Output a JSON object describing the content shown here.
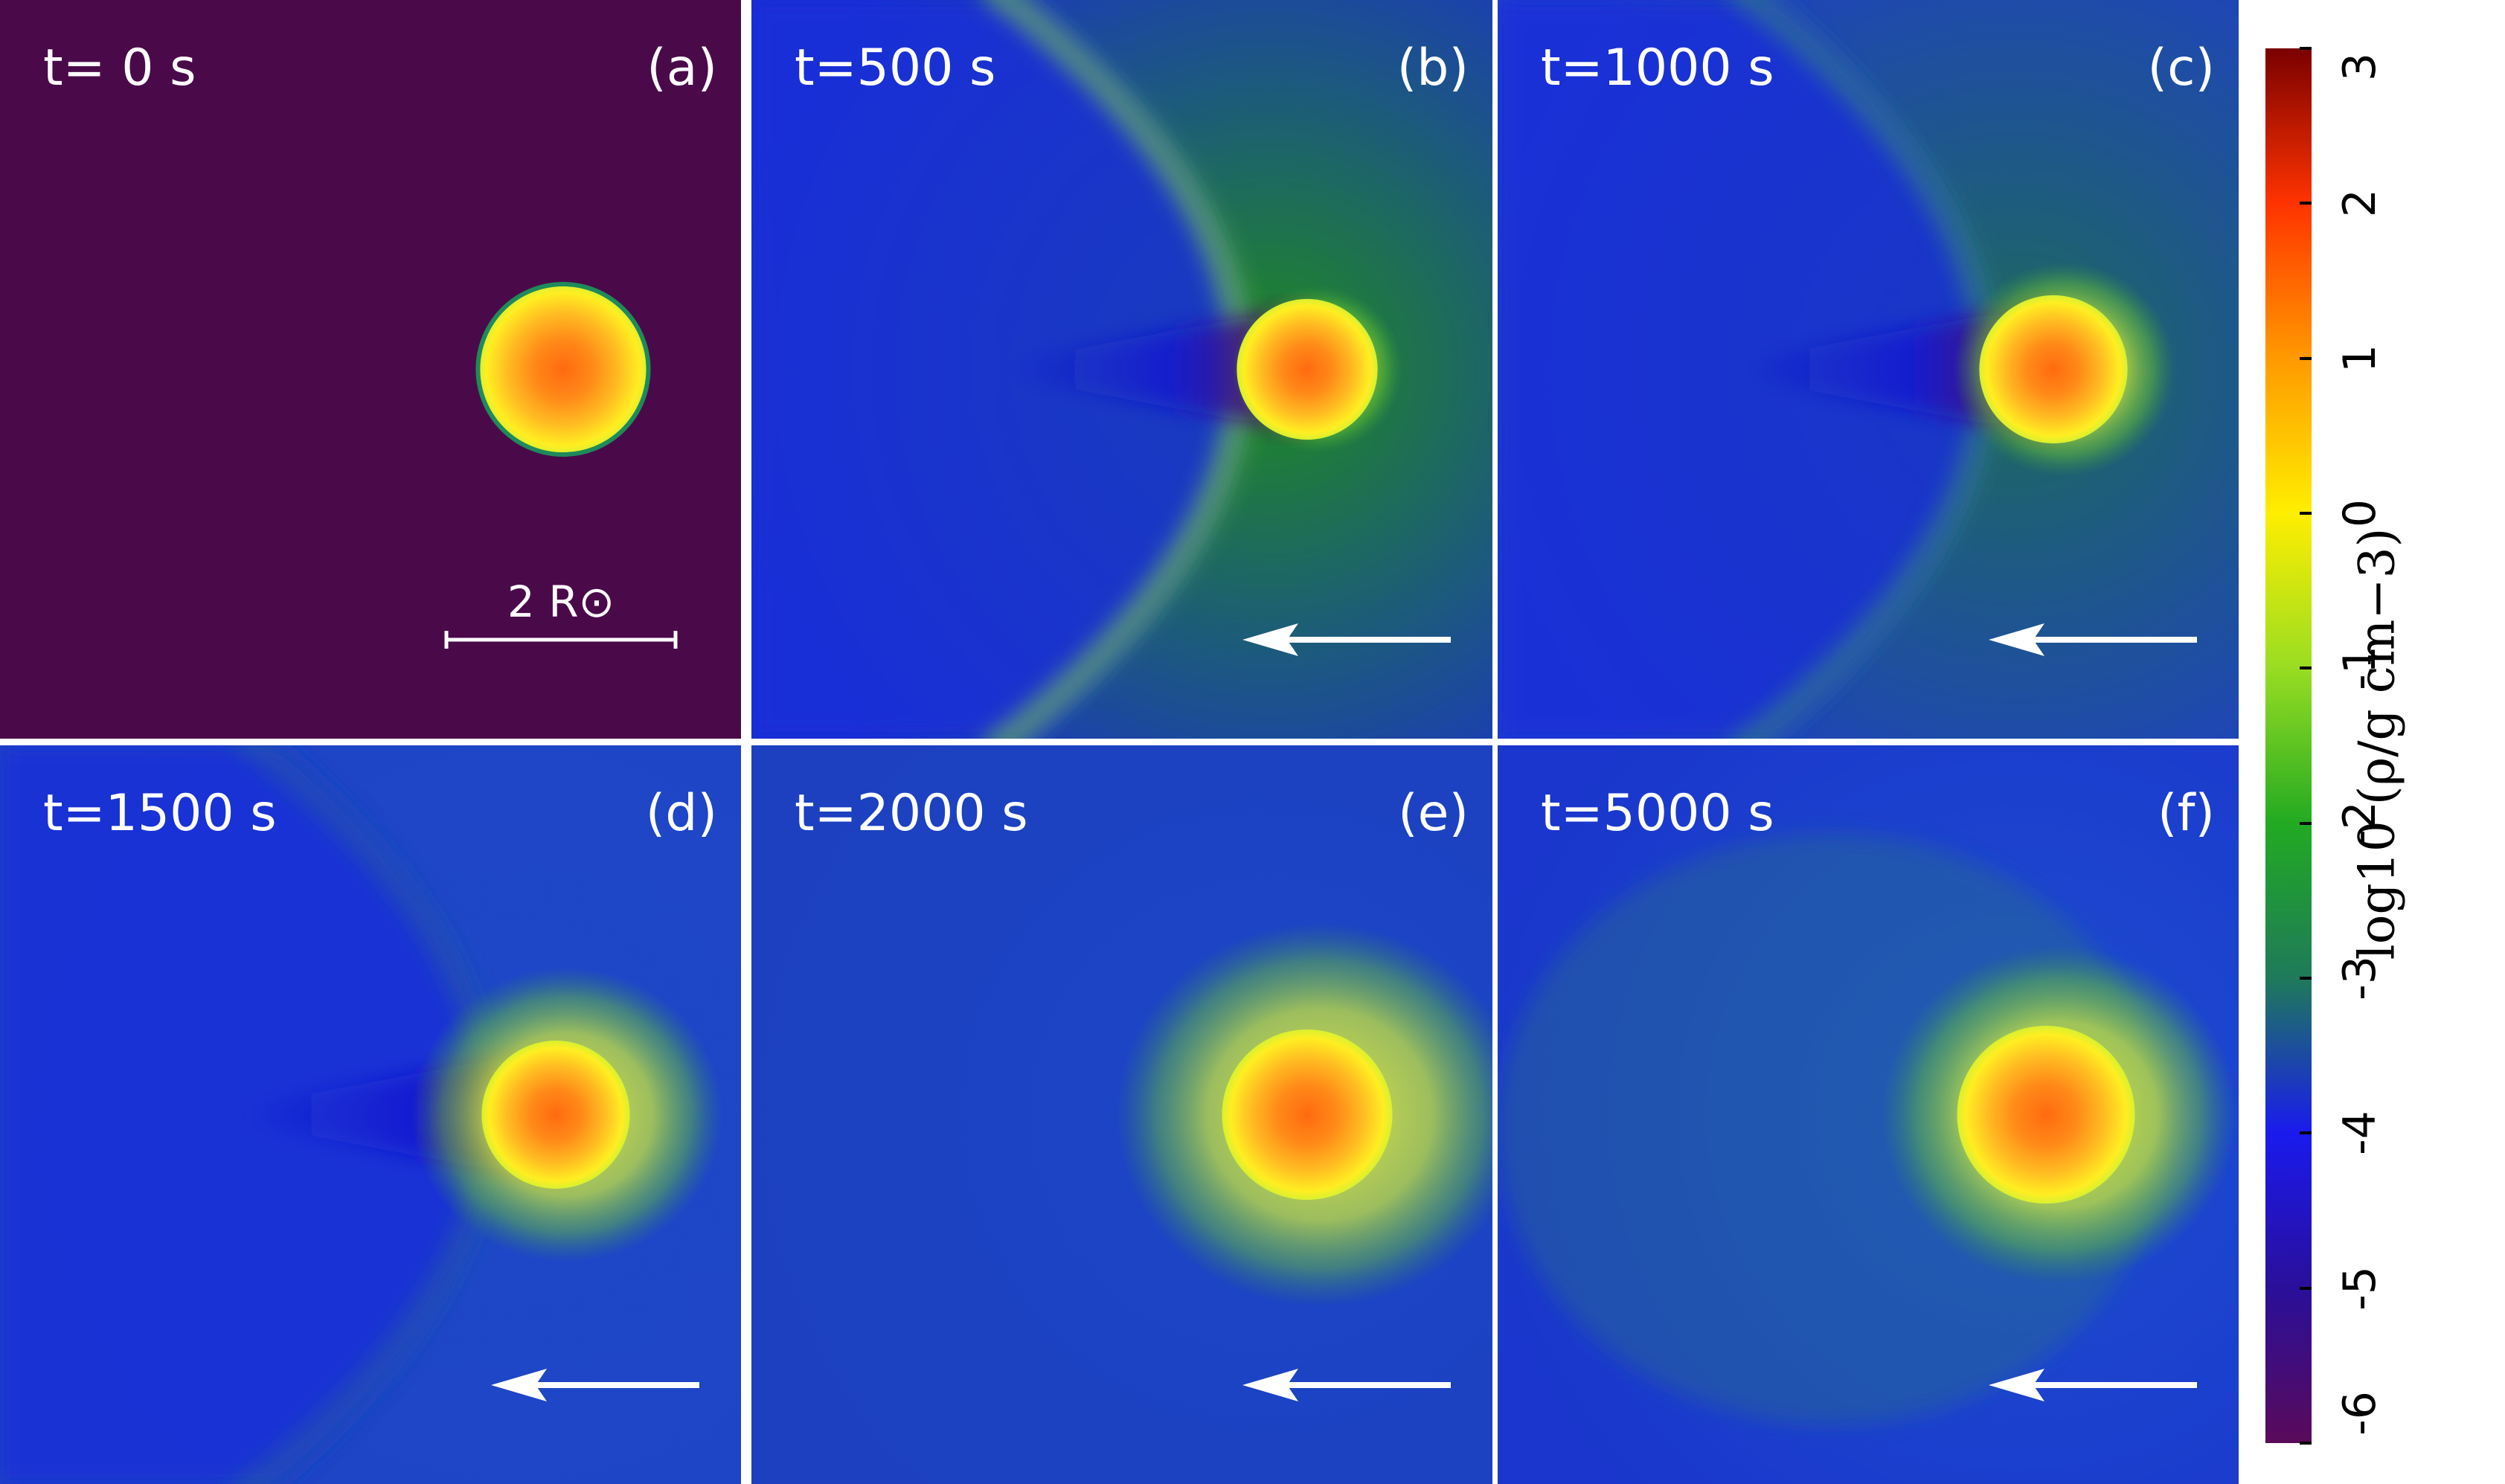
{
  "panels": [
    {
      "time": "t= 0 s",
      "letter": "(a)",
      "has_arrow": false,
      "has_scalebar": true
    },
    {
      "time": "t=500 s",
      "letter": "(b)",
      "has_arrow": true,
      "has_scalebar": false
    },
    {
      "time": "t=1000 s",
      "letter": "(c)",
      "has_arrow": true,
      "has_scalebar": false
    },
    {
      "time": "t=1500 s",
      "letter": "(d)",
      "has_arrow": true,
      "has_scalebar": false
    },
    {
      "time": "t=2000 s",
      "letter": "(e)",
      "has_arrow": true,
      "has_scalebar": false
    },
    {
      "time": "t=5000 s",
      "letter": "(f)",
      "has_arrow": true,
      "has_scalebar": false
    }
  ],
  "scalebar": {
    "label": "2 R⊙"
  },
  "colorbar": {
    "label": "log10 (ρ/g cm−3)",
    "min": -6,
    "max": 3,
    "ticks": [
      "3",
      "2",
      "1",
      "0",
      "-1",
      "-2",
      "-3",
      "-4",
      "-5",
      "-6"
    ],
    "colors": [
      "#7a0000",
      "#ff3300",
      "#ff9900",
      "#ffee00",
      "#99dd22",
      "#22aa22",
      "#1e7a5a",
      "#1a1aee",
      "#2a0f9a",
      "#5a0a5a"
    ]
  }
}
